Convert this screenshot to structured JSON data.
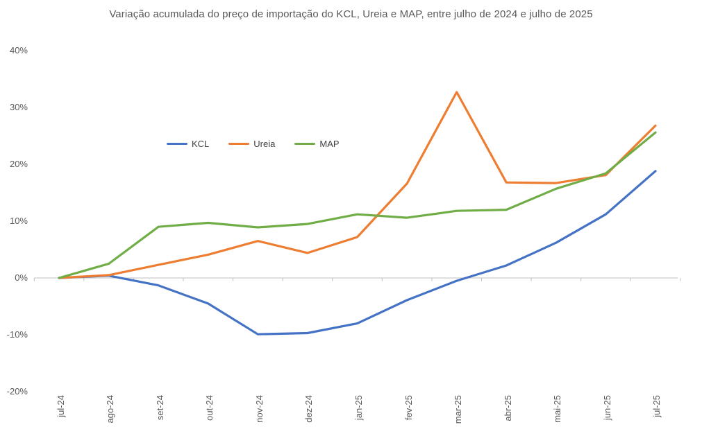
{
  "chart_data": {
    "type": "line",
    "title": "Variação acumulada do preço de importação do KCL, Ureia e MAP, entre julho de 2024 e julho de 2025",
    "categories": [
      "jul-24",
      "ago-24",
      "set-24",
      "out-24",
      "nov-24",
      "dez-24",
      "jan-25",
      "fev-25",
      "mar-25",
      "abr-25",
      "mai-25",
      "jun-25",
      "jul-25"
    ],
    "series": [
      {
        "name": "KCL",
        "color": "#4472C4",
        "values": [
          0,
          0.4,
          -1.3,
          -4.5,
          -9.9,
          -9.7,
          -8.0,
          -3.9,
          -0.5,
          2.2,
          6.2,
          11.2,
          18.8
        ]
      },
      {
        "name": "Ureia",
        "color": "#ED7D31",
        "values": [
          0,
          0.5,
          2.3,
          4.1,
          6.5,
          4.4,
          7.2,
          16.6,
          32.7,
          16.8,
          16.7,
          18.1,
          26.8
        ]
      },
      {
        "name": "MAP",
        "color": "#70AD47",
        "values": [
          0,
          2.5,
          9.0,
          9.7,
          8.9,
          9.5,
          11.2,
          10.6,
          11.8,
          12.0,
          15.7,
          18.4,
          25.6
        ]
      }
    ],
    "y_axis": {
      "unit": "%",
      "min": -20,
      "max": 40,
      "ticks": [
        {
          "label": "40%",
          "value": 40
        },
        {
          "label": "30%",
          "value": 30
        },
        {
          "label": "20%",
          "value": 20
        },
        {
          "label": "10%",
          "value": 10
        },
        {
          "label": "0%",
          "value": 0
        },
        {
          "label": "-10%",
          "value": -10
        },
        {
          "label": "-20%",
          "value": -20
        }
      ]
    },
    "x_axis": {
      "label_rotation_degrees": -90,
      "tick_marks": "between-categories"
    },
    "legend": {
      "position": "inside-upper-left",
      "items": [
        "KCL",
        "Ureia",
        "MAP"
      ]
    },
    "grid": false,
    "axis_color": "#BFBFBF",
    "text_color": "#595959",
    "legend_text_color": "#404040"
  }
}
